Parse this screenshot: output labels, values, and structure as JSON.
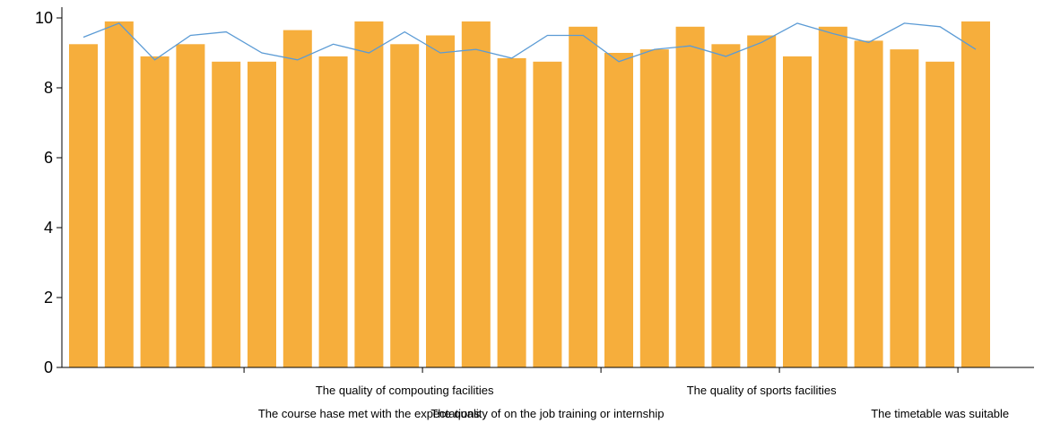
{
  "chart_data": {
    "type": "bar",
    "ylim": [
      0,
      10
    ],
    "yticks": [
      "0",
      "2",
      "4",
      "6",
      "8",
      "10"
    ],
    "colors": {
      "bar": "#F6AE3C",
      "line": "#5B9BD5",
      "axis": "#000000"
    },
    "bar_values": [
      9.25,
      9.9,
      8.9,
      9.25,
      8.75,
      8.75,
      9.65,
      8.9,
      9.9,
      9.25,
      9.5,
      9.9,
      8.85,
      8.75,
      9.75,
      9.0,
      9.1,
      9.75,
      9.25,
      9.5,
      8.9,
      9.75,
      9.35,
      9.1,
      8.75,
      9.9
    ],
    "line_values": [
      9.45,
      9.85,
      8.8,
      9.5,
      9.6,
      9.0,
      8.8,
      9.25,
      9.0,
      9.6,
      9.0,
      9.1,
      8.85,
      9.5,
      9.5,
      8.75,
      9.1,
      9.2,
      8.9,
      9.3,
      9.85,
      9.55,
      9.3,
      9.85,
      9.75,
      9.1
    ],
    "category_labels": [
      {
        "index": 8,
        "text": "The course hase met with the expectations",
        "row": 2
      },
      {
        "index": 9,
        "text": "The quality of compouting facilities",
        "row": 1
      },
      {
        "index": 13,
        "text": "The quality of on the job training or internship",
        "row": 2
      },
      {
        "index": 19,
        "text": "The quality of sports facilities",
        "row": 1
      },
      {
        "index": 24,
        "text": "The timetable was suitable",
        "row": 2
      }
    ],
    "xticks_after_index": [
      4,
      9,
      14,
      19,
      24
    ]
  }
}
